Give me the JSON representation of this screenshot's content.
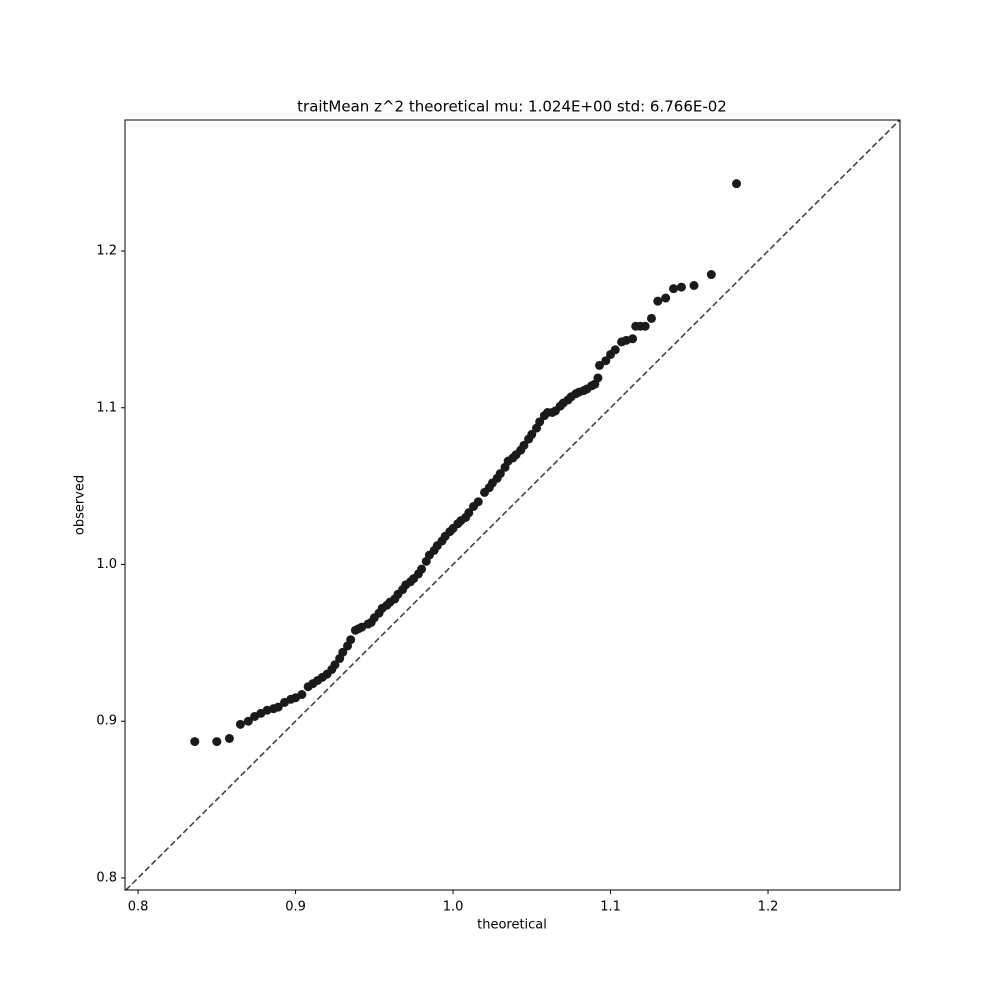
{
  "chart_data": {
    "type": "scatter",
    "title": "traitMean z^2 theoretical mu: 1.024E+00 std: 6.766E-02",
    "x_label": "theoretical",
    "y_label": "observed",
    "color": "#1a1a1a",
    "identity_line": true,
    "identity_color": "#444444",
    "x": [
      0.836,
      0.85,
      0.858,
      0.865,
      0.87,
      0.874,
      0.878,
      0.882,
      0.886,
      0.889,
      0.893,
      0.897,
      0.9,
      0.904,
      0.908,
      0.911,
      0.914,
      0.917,
      0.92,
      0.923,
      0.925,
      0.928,
      0.93,
      0.933,
      0.935,
      0.938,
      0.94,
      0.942,
      0.946,
      0.948,
      0.95,
      0.953,
      0.955,
      0.958,
      0.96,
      0.963,
      0.965,
      0.968,
      0.97,
      0.973,
      0.975,
      0.978,
      0.98,
      0.983,
      0.985,
      0.988,
      0.99,
      0.993,
      0.995,
      0.998,
      1.0,
      1.003,
      1.005,
      1.008,
      1.01,
      1.013,
      1.016,
      1.02,
      1.023,
      1.025,
      1.028,
      1.03,
      1.033,
      1.035,
      1.038,
      1.04,
      1.043,
      1.045,
      1.048,
      1.05,
      1.053,
      1.055,
      1.058,
      1.06,
      1.063,
      1.065,
      1.068,
      1.07,
      1.073,
      1.075,
      1.078,
      1.08,
      1.083,
      1.085,
      1.088,
      1.09,
      1.092,
      1.093,
      1.097,
      1.1,
      1.103,
      1.107,
      1.11,
      1.114,
      1.116,
      1.119,
      1.122,
      1.126,
      1.13,
      1.135,
      1.14,
      1.145,
      1.153,
      1.164,
      1.18
    ],
    "values": [
      0.887,
      0.887,
      0.889,
      0.898,
      0.9,
      0.903,
      0.905,
      0.907,
      0.908,
      0.909,
      0.912,
      0.914,
      0.915,
      0.917,
      0.922,
      0.924,
      0.926,
      0.928,
      0.93,
      0.933,
      0.936,
      0.94,
      0.944,
      0.948,
      0.952,
      0.958,
      0.959,
      0.96,
      0.962,
      0.963,
      0.966,
      0.969,
      0.972,
      0.974,
      0.976,
      0.978,
      0.981,
      0.984,
      0.987,
      0.989,
      0.991,
      0.994,
      0.997,
      1.002,
      1.006,
      1.009,
      1.012,
      1.015,
      1.018,
      1.021,
      1.023,
      1.026,
      1.028,
      1.03,
      1.033,
      1.037,
      1.04,
      1.046,
      1.049,
      1.052,
      1.055,
      1.058,
      1.062,
      1.066,
      1.068,
      1.07,
      1.073,
      1.076,
      1.08,
      1.083,
      1.087,
      1.091,
      1.095,
      1.097,
      1.097,
      1.098,
      1.101,
      1.103,
      1.105,
      1.107,
      1.109,
      1.11,
      1.111,
      1.112,
      1.114,
      1.115,
      1.119,
      1.127,
      1.13,
      1.134,
      1.137,
      1.142,
      1.143,
      1.144,
      1.152,
      1.152,
      1.152,
      1.157,
      1.168,
      1.17,
      1.176,
      1.177,
      1.178,
      1.185,
      1.243
    ],
    "xlim": [
      0.7917,
      1.2838
    ],
    "ylim": [
      0.7923,
      1.2836
    ],
    "xticks": [
      0.8,
      0.9,
      {
        "value": 1.0,
        "label": "1.0"
      },
      1.1,
      1.2
    ],
    "yticks": [
      0.8,
      0.9,
      {
        "value": 1.0,
        "label": "1.0"
      },
      1.1,
      1.2
    ]
  }
}
